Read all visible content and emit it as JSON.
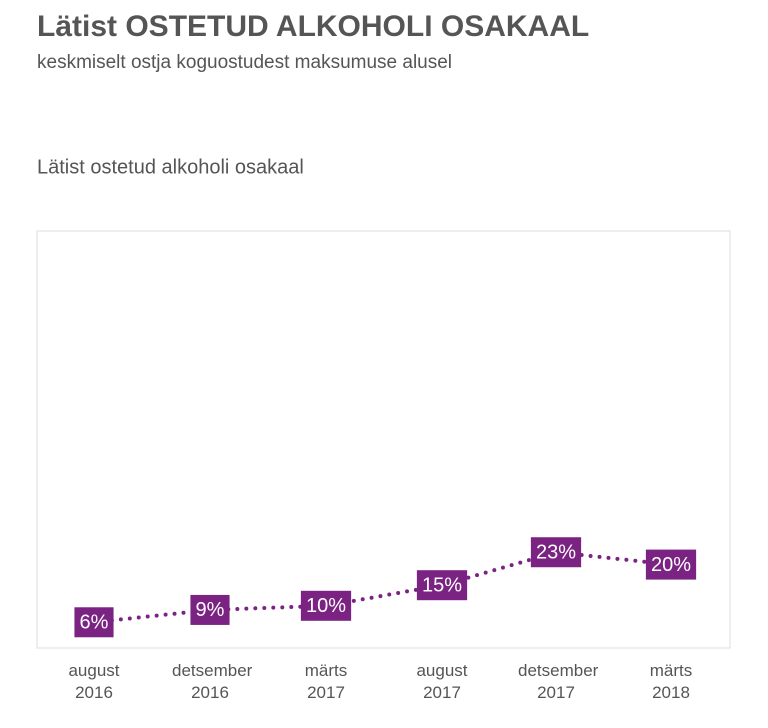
{
  "chart_data": {
    "type": "line",
    "title": "Lätist OSTETUD ALKOHOLI OSAKAAL",
    "subtitle": "keskmiselt ostja koguostudest maksumuse alusel",
    "chart_title": "Lätist ostetud alkoholi osakaal",
    "categories": [
      "august 2016",
      "detsember 2016",
      "märts 2017",
      "august 2017",
      "detsember 2017",
      "märts 2018"
    ],
    "values": [
      6,
      9,
      10,
      15,
      23,
      20
    ],
    "value_labels": [
      "6%",
      "9%",
      "10%",
      "15%",
      "23%",
      "20%"
    ],
    "color": "#7a2382",
    "line_style": "dotted"
  }
}
